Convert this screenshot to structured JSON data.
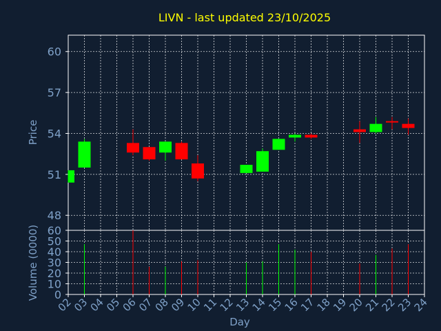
{
  "chart_data": {
    "type": "candlestick",
    "title": "LIVN - last updated 23/10/2025",
    "xlabel": "Day",
    "ylabel_price": "Price",
    "ylabel_volume": "Volume (0000)",
    "x_ticks": [
      "02",
      "03",
      "04",
      "05",
      "06",
      "07",
      "08",
      "09",
      "10",
      "11",
      "12",
      "13",
      "14",
      "15",
      "16",
      "17",
      "18",
      "19",
      "20",
      "21",
      "22",
      "23",
      "24"
    ],
    "price_ylim": [
      46.9,
      61.2
    ],
    "price_ticks": [
      48,
      51,
      54,
      57,
      60
    ],
    "volume_ylim": [
      0,
      60
    ],
    "volume_ticks": [
      0,
      10,
      20,
      30,
      40,
      50,
      60
    ],
    "grid": true,
    "candles": [
      {
        "day": "02",
        "open": 50.4,
        "high": 51.3,
        "low": 50.4,
        "close": 51.3,
        "volume": 0
      },
      {
        "day": "03",
        "open": 51.5,
        "high": 53.6,
        "low": 51.5,
        "close": 53.4,
        "volume": 47
      },
      {
        "day": "06",
        "open": 53.3,
        "high": 54.3,
        "low": 52.4,
        "close": 52.6,
        "volume": 60
      },
      {
        "day": "07",
        "open": 53.0,
        "high": 53.0,
        "low": 52.0,
        "close": 52.1,
        "volume": 26
      },
      {
        "day": "08",
        "open": 52.6,
        "high": 53.4,
        "low": 52.0,
        "close": 53.4,
        "volume": 26
      },
      {
        "day": "09",
        "open": 53.3,
        "high": 53.4,
        "low": 52.1,
        "close": 52.1,
        "volume": 31
      },
      {
        "day": "10",
        "open": 51.8,
        "high": 52.4,
        "low": 50.5,
        "close": 50.7,
        "volume": 32
      },
      {
        "day": "13",
        "open": 51.1,
        "high": 51.7,
        "low": 51.1,
        "close": 51.7,
        "volume": 30
      },
      {
        "day": "14",
        "open": 51.2,
        "high": 52.9,
        "low": 51.2,
        "close": 52.7,
        "volume": 31
      },
      {
        "day": "15",
        "open": 52.8,
        "high": 53.6,
        "low": 52.8,
        "close": 53.6,
        "volume": 47
      },
      {
        "day": "16",
        "open": 53.7,
        "high": 54.0,
        "low": 53.4,
        "close": 53.9,
        "volume": 42
      },
      {
        "day": "17",
        "open": 53.9,
        "high": 54.0,
        "low": 53.6,
        "close": 53.7,
        "volume": 40
      },
      {
        "day": "20",
        "open": 54.3,
        "high": 54.9,
        "low": 53.3,
        "close": 54.1,
        "volume": 29
      },
      {
        "day": "21",
        "open": 54.1,
        "high": 55.2,
        "low": 54.0,
        "close": 54.7,
        "volume": 37
      },
      {
        "day": "22",
        "open": 54.9,
        "high": 55.2,
        "low": 54.3,
        "close": 54.8,
        "volume": 43
      },
      {
        "day": "23",
        "open": 54.7,
        "high": 55.1,
        "low": 53.9,
        "close": 54.4,
        "volume": 47
      }
    ]
  },
  "colors": {
    "background": "#111e30",
    "plot_background": "#111e30",
    "axes": "#ffffff",
    "grid": "#ffffff",
    "title": "#ffff00",
    "labels": "#7fa1c8",
    "up": "#00ff00",
    "down": "#ff0000"
  }
}
